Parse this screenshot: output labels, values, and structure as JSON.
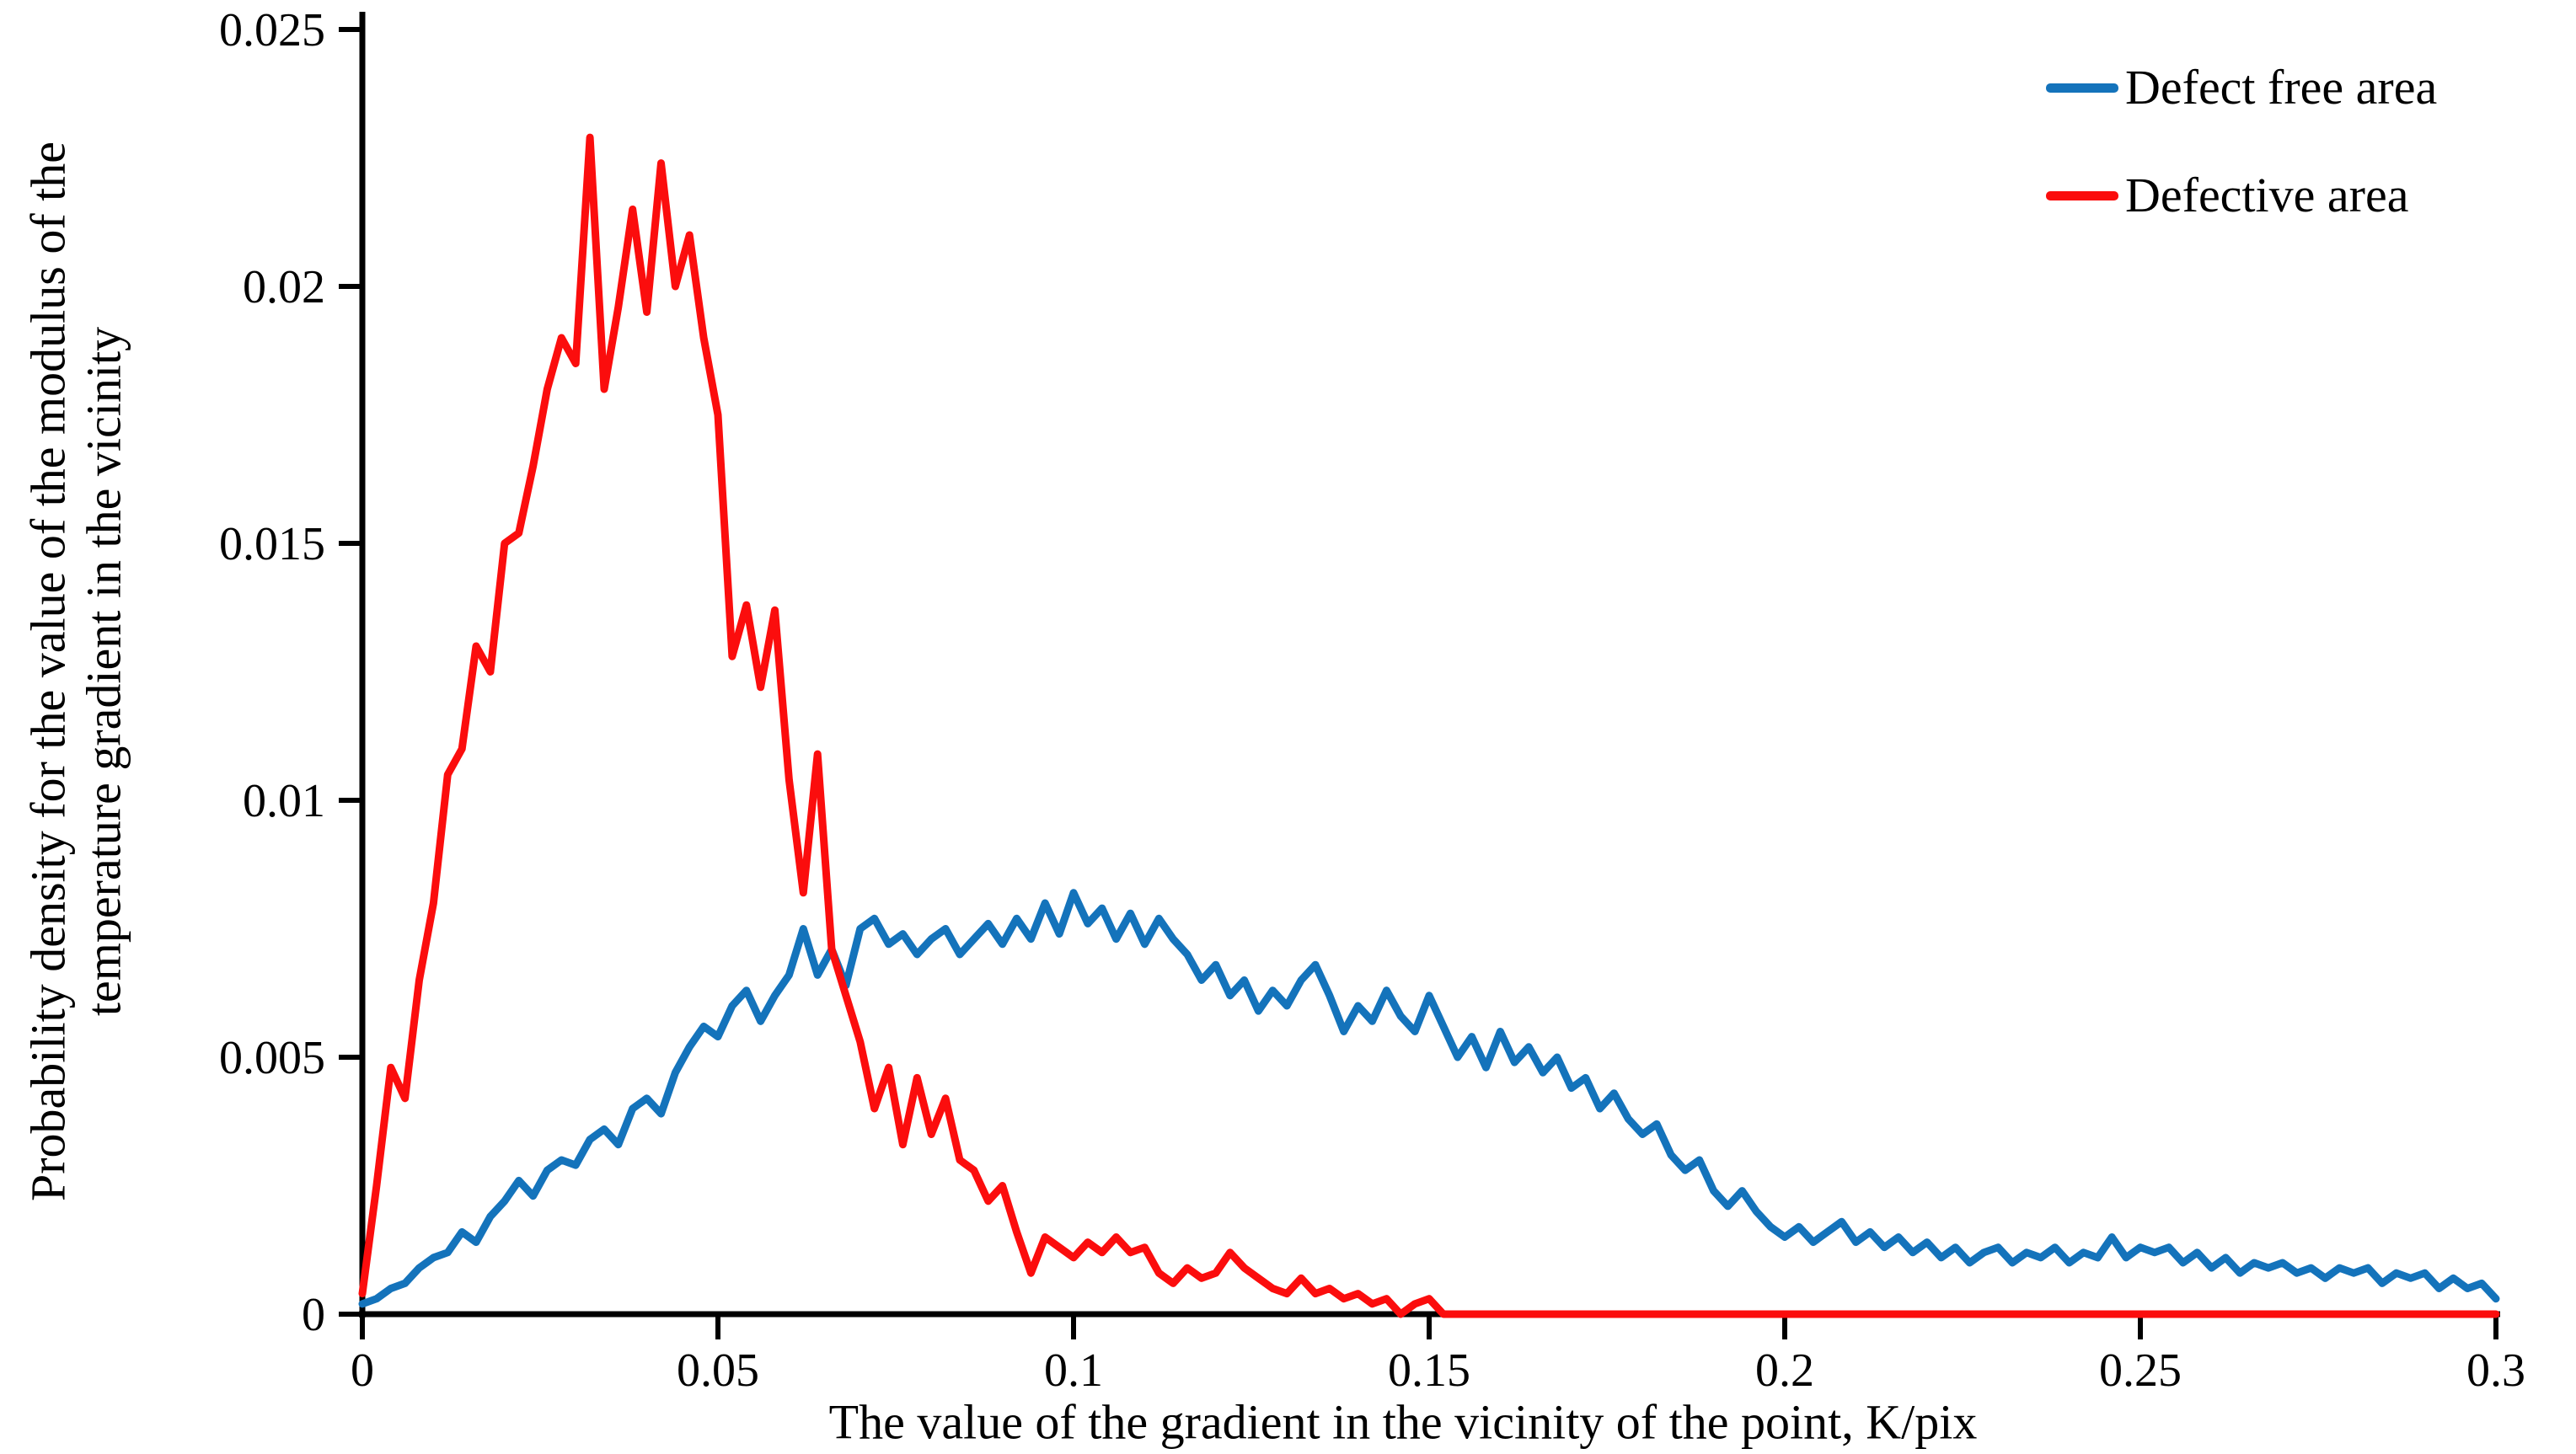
{
  "figure": {
    "background": "#ffffff",
    "axis_color": "#000000"
  },
  "legend": {
    "entries": [
      {
        "label": "Defect free area",
        "color": "#1473bb"
      },
      {
        "label": "Defective area",
        "color": "#fb0d0d"
      }
    ]
  },
  "chart_data": {
    "type": "line",
    "title": "",
    "xlabel": "The value of the gradient in the vicinity of the point, K/pix",
    "ylabel_line1": "Probability density for the value of the modulus of the",
    "ylabel_line2": "temperature gradient in the vicinity",
    "xlim": [
      0,
      0.3
    ],
    "ylim": [
      0,
      0.025
    ],
    "grid": false,
    "legend_position": "top-right",
    "x_ticks": [
      0,
      0.05,
      0.1,
      0.15,
      0.2,
      0.25,
      0.3
    ],
    "x_tick_labels": [
      "0",
      "0.05",
      "0.1",
      "0.15",
      "0.2",
      "0.25",
      "0.3"
    ],
    "y_ticks": [
      0,
      0.005,
      0.01,
      0.015,
      0.02,
      0.025
    ],
    "y_tick_labels": [
      "0",
      "0.005",
      "0.01",
      "0.015",
      "0.02",
      "0.025"
    ],
    "x_start": 0,
    "x_step": 0.002,
    "series": [
      {
        "name": "Defect free area",
        "color": "#1473bb",
        "values": [
          0.0002,
          0.0003,
          0.0005,
          0.0006,
          0.0009,
          0.0011,
          0.0012,
          0.0016,
          0.0014,
          0.0019,
          0.0022,
          0.0026,
          0.0023,
          0.0028,
          0.003,
          0.0029,
          0.0034,
          0.0036,
          0.0033,
          0.004,
          0.0042,
          0.0039,
          0.0047,
          0.0052,
          0.0056,
          0.0054,
          0.006,
          0.0063,
          0.0057,
          0.0062,
          0.0066,
          0.0075,
          0.0066,
          0.0071,
          0.0064,
          0.0075,
          0.0077,
          0.0072,
          0.0074,
          0.007,
          0.0073,
          0.0075,
          0.007,
          0.0073,
          0.0076,
          0.0072,
          0.0077,
          0.0073,
          0.008,
          0.0074,
          0.0082,
          0.0076,
          0.0079,
          0.0073,
          0.0078,
          0.0072,
          0.0077,
          0.0073,
          0.007,
          0.0065,
          0.0068,
          0.0062,
          0.0065,
          0.0059,
          0.0063,
          0.006,
          0.0065,
          0.0068,
          0.0062,
          0.0055,
          0.006,
          0.0057,
          0.0063,
          0.0058,
          0.0055,
          0.0062,
          0.0056,
          0.005,
          0.0054,
          0.0048,
          0.0055,
          0.0049,
          0.0052,
          0.0047,
          0.005,
          0.0044,
          0.0046,
          0.004,
          0.0043,
          0.0038,
          0.0035,
          0.0037,
          0.0031,
          0.0028,
          0.003,
          0.0024,
          0.0021,
          0.0024,
          0.002,
          0.0017,
          0.0015,
          0.0017,
          0.0014,
          0.0016,
          0.0018,
          0.0014,
          0.0016,
          0.0013,
          0.0015,
          0.0012,
          0.0014,
          0.0011,
          0.0013,
          0.001,
          0.0012,
          0.0013,
          0.001,
          0.0012,
          0.0011,
          0.0013,
          0.001,
          0.0012,
          0.0011,
          0.0015,
          0.0011,
          0.0013,
          0.0012,
          0.0013,
          0.001,
          0.0012,
          0.0009,
          0.0011,
          0.0008,
          0.001,
          0.0009,
          0.001,
          0.0008,
          0.0009,
          0.0007,
          0.0009,
          0.0008,
          0.0009,
          0.0006,
          0.0008,
          0.0007,
          0.0008,
          0.0005,
          0.0007,
          0.0005,
          0.0006,
          0.0003
        ]
      },
      {
        "name": "Defective area",
        "color": "#fb0d0d",
        "values": [
          0.0004,
          0.0025,
          0.0048,
          0.0042,
          0.0065,
          0.008,
          0.0105,
          0.011,
          0.013,
          0.0125,
          0.015,
          0.0152,
          0.0165,
          0.018,
          0.019,
          0.0185,
          0.0229,
          0.018,
          0.0196,
          0.0215,
          0.0195,
          0.0224,
          0.02,
          0.021,
          0.019,
          0.0175,
          0.0128,
          0.0138,
          0.0122,
          0.0137,
          0.0104,
          0.0082,
          0.0109,
          0.0071,
          0.0062,
          0.0053,
          0.004,
          0.0048,
          0.0033,
          0.0046,
          0.0035,
          0.0042,
          0.003,
          0.0028,
          0.0022,
          0.0025,
          0.0016,
          0.0008,
          0.0015,
          0.0013,
          0.0011,
          0.0014,
          0.0012,
          0.0015,
          0.0012,
          0.0013,
          0.0008,
          0.0006,
          0.0009,
          0.0007,
          0.0008,
          0.0012,
          0.0009,
          0.0007,
          0.0005,
          0.0004,
          0.0007,
          0.0004,
          0.0005,
          0.0003,
          0.0004,
          0.0002,
          0.0003,
          0.0,
          0.0002,
          0.0003,
          0.0,
          0,
          0,
          0,
          0,
          0,
          0,
          0,
          0,
          0,
          0,
          0,
          0,
          0,
          0,
          0,
          0,
          0,
          0,
          0,
          0,
          0,
          0,
          0,
          0,
          0,
          0,
          0,
          0,
          0,
          0,
          0,
          0,
          0,
          0,
          0,
          0,
          0,
          0,
          0,
          0,
          0,
          0,
          0,
          0,
          0,
          0,
          0,
          0,
          0,
          0,
          0,
          0,
          0,
          0,
          0,
          0,
          0,
          0,
          0,
          0,
          0,
          0,
          0,
          0,
          0,
          0,
          0,
          0,
          0,
          0,
          0,
          0,
          0,
          0
        ]
      }
    ]
  }
}
